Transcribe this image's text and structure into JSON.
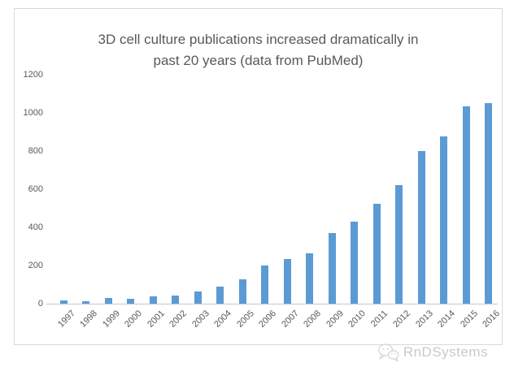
{
  "chart": {
    "title_line1": "3D cell culture publications increased dramatically in",
    "title_line2": "past 20 years (data from PubMed)"
  },
  "chart_data": {
    "type": "bar",
    "title": "3D cell culture publications increased dramatically in past 20 years (data from PubMed)",
    "categories": [
      "1997",
      "1998",
      "1999",
      "2000",
      "2001",
      "2002",
      "2003",
      "2004",
      "2005",
      "2006",
      "2007",
      "2008",
      "2009",
      "2010",
      "2011",
      "2012",
      "2013",
      "2014",
      "2015",
      "2016"
    ],
    "values": [
      15,
      13,
      28,
      26,
      40,
      44,
      65,
      90,
      128,
      200,
      236,
      262,
      372,
      430,
      524,
      622,
      800,
      876,
      1035,
      1052
    ],
    "xlabel": "",
    "ylabel": "",
    "ylim": [
      0,
      1200
    ],
    "yticks": [
      0,
      200,
      400,
      600,
      800,
      1000,
      1200
    ],
    "grid": false,
    "legend": false,
    "bar_color": "#5b9bd5"
  },
  "watermark": {
    "text": "RnDSystems",
    "icon": "wechat-icon"
  },
  "colors": {
    "bar": "#5b9bd5",
    "title_text": "#595959",
    "axis_text": "#595959",
    "axis_line": "#c6c6c6",
    "chart_border": "#d9d9d9",
    "watermark_text": "#c9c9c9",
    "watermark_icon": "#d4d4d4"
  }
}
